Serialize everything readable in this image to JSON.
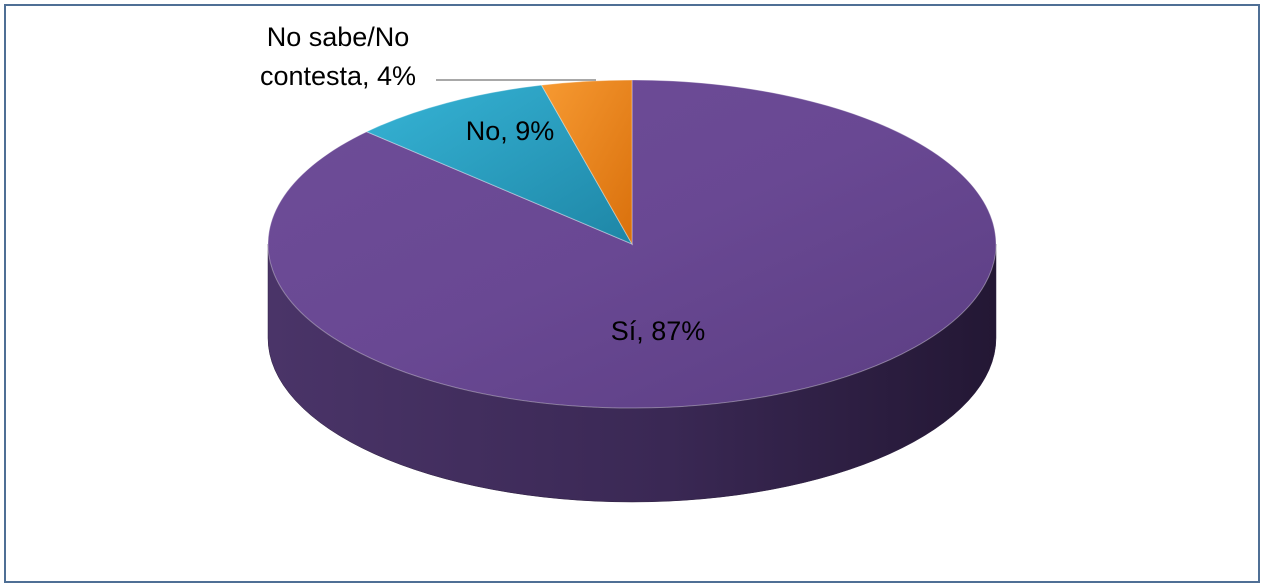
{
  "chart_data": {
    "type": "pie",
    "variant": "3d",
    "slices": [
      {
        "label": "Sí",
        "value": 87,
        "display": "Sí, 87%",
        "color": "#7a55a6"
      },
      {
        "label": "No",
        "value": 9,
        "display": "No, 9%",
        "color": "#2fa8cc"
      },
      {
        "label": "No sabe/No contesta",
        "value": 4,
        "display_lines": [
          "No sabe/No",
          "contesta, 4%"
        ],
        "color": "#f28a1e"
      }
    ],
    "legend": "none",
    "data_labels": "category, percentage"
  }
}
